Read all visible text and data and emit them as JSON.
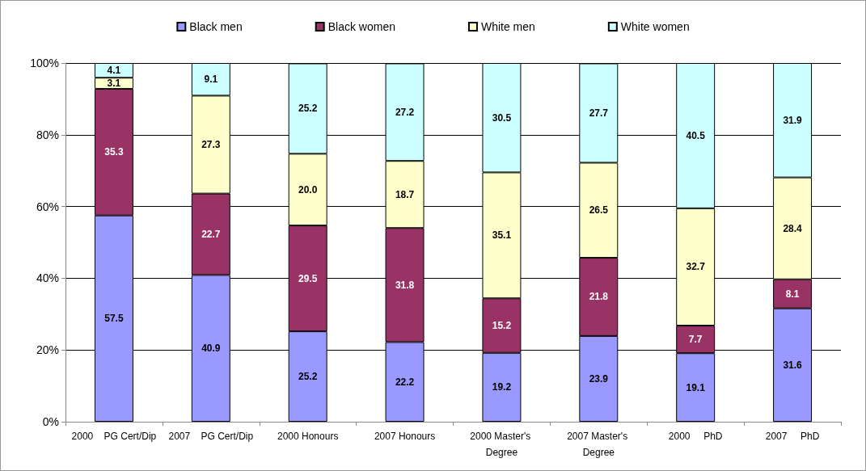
{
  "chart_data": {
    "type": "bar",
    "stacked": true,
    "categories": [
      "2000    PG Cert/Dip",
      "2007    PG Cert/Dip",
      "2000 Honours",
      "2007 Honours",
      "2000 Master's Degree",
      "2007 Master's Degree",
      "2000     PhD",
      "2007     PhD"
    ],
    "series": [
      {
        "name": "Black men",
        "color": "#9999ff",
        "values": [
          57.5,
          40.9,
          25.2,
          22.2,
          19.2,
          23.9,
          19.1,
          31.6
        ],
        "value_labels": [
          "57.5",
          "40.9",
          "25.2",
          "22.2",
          "19.2",
          "23.9",
          "19.1",
          "31.6"
        ]
      },
      {
        "name": "Black women",
        "color": "#993366",
        "values": [
          35.3,
          22.7,
          29.5,
          31.8,
          15.2,
          21.8,
          7.7,
          8.1
        ],
        "value_labels": [
          "35.3",
          "22.7",
          "29.5",
          "31.8",
          "15.2",
          "21.8",
          "7.7",
          "8.1"
        ]
      },
      {
        "name": "White men",
        "color": "#ffffcc",
        "values": [
          3.1,
          27.3,
          20.0,
          18.7,
          35.1,
          26.5,
          32.7,
          28.4
        ],
        "value_labels": [
          "3.1",
          "27.3",
          "20.0",
          "18.7",
          "35.1",
          "26.5",
          "32.7",
          "28.4"
        ]
      },
      {
        "name": "White women",
        "color": "#ccffff",
        "values": [
          4.1,
          9.1,
          25.2,
          27.2,
          30.5,
          27.7,
          40.5,
          31.9
        ],
        "value_labels": [
          "4.1",
          "9.1",
          "25.2",
          "27.2",
          "30.5",
          "27.7",
          "40.5",
          "31.9"
        ]
      }
    ],
    "ylim": [
      0,
      100
    ],
    "yticks": [
      {
        "value": 0,
        "label": "0%"
      },
      {
        "value": 20,
        "label": "20%"
      },
      {
        "value": 40,
        "label": "40%"
      },
      {
        "value": 60,
        "label": "60%"
      },
      {
        "value": 80,
        "label": "80%"
      },
      {
        "value": 100,
        "label": "100%"
      }
    ],
    "grid": "y",
    "legend": "top"
  }
}
